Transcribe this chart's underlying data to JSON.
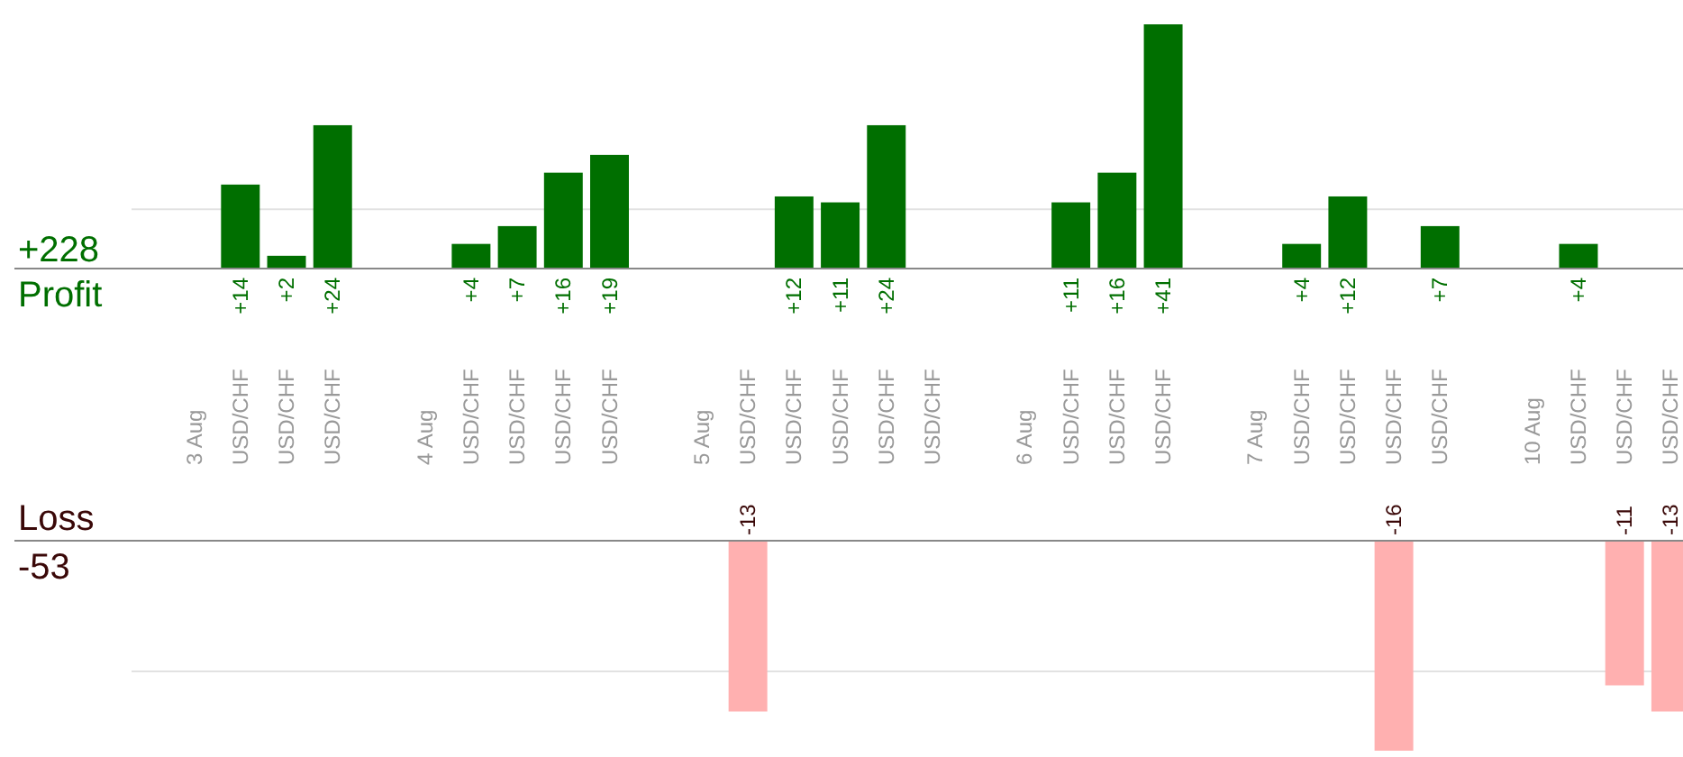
{
  "chart_data": [
    {
      "type": "bar",
      "title": "Profit",
      "subtitle": "+228",
      "categories": [
        "3 Aug",
        "USD/CHF",
        "USD/CHF",
        "USD/CHF",
        null,
        "4 Aug",
        "USD/CHF",
        "USD/CHF",
        "USD/CHF",
        "USD/CHF",
        null,
        "5 Aug",
        "USD/CHF",
        "USD/CHF",
        "USD/CHF",
        "USD/CHF",
        "USD/CHF",
        null,
        "6 Aug",
        "USD/CHF",
        "USD/CHF",
        "USD/CHF",
        null,
        "7 Aug",
        "USD/CHF",
        "USD/CHF",
        "USD/CHF",
        "USD/CHF",
        null,
        "10 Aug",
        "USD/CHF",
        "USD/CHF",
        "USD/CHF"
      ],
      "series": [
        {
          "color": "#006f00",
          "values": [
            null,
            14,
            2,
            24,
            null,
            null,
            4,
            7,
            16,
            19,
            null,
            null,
            null,
            12,
            11,
            24,
            null,
            null,
            null,
            11,
            16,
            41,
            null,
            null,
            4,
            12,
            null,
            7,
            null,
            null,
            4,
            null,
            null
          ],
          "value_labels": [
            null,
            "+14",
            "+2",
            "+24",
            null,
            null,
            "+4",
            "+7",
            "+16",
            "+19",
            null,
            null,
            null,
            "+12",
            "+11",
            "+24",
            null,
            null,
            null,
            "+11",
            "+16",
            "+41",
            null,
            null,
            "+4",
            "+12",
            null,
            "+7",
            null,
            null,
            "+4",
            null,
            null
          ]
        }
      ],
      "ref_lines": [
        {
          "axis": "y",
          "value": 10,
          "color": "#e2e2e2"
        }
      ]
    },
    {
      "type": "bar",
      "title": "Loss",
      "subtitle": "-53",
      "categories": [
        null,
        null,
        null,
        null,
        null,
        null,
        null,
        null,
        null,
        null,
        null,
        null,
        null,
        null,
        null,
        null,
        null,
        null,
        null,
        null,
        null,
        null,
        null,
        null,
        null,
        null,
        null,
        null,
        null,
        null,
        null,
        null,
        null
      ],
      "series": [
        {
          "color": "#ffb0b0",
          "values": [
            null,
            null,
            null,
            null,
            null,
            null,
            null,
            null,
            null,
            null,
            null,
            null,
            -13,
            null,
            null,
            null,
            null,
            null,
            null,
            null,
            null,
            null,
            null,
            null,
            null,
            null,
            -16,
            null,
            null,
            null,
            null,
            -11,
            -13
          ]
        }
      ],
      "data_labels": true,
      "ref_lines": [
        {
          "axis": "y",
          "value": -10,
          "color": "#e2e2e2"
        }
      ]
    }
  ]
}
